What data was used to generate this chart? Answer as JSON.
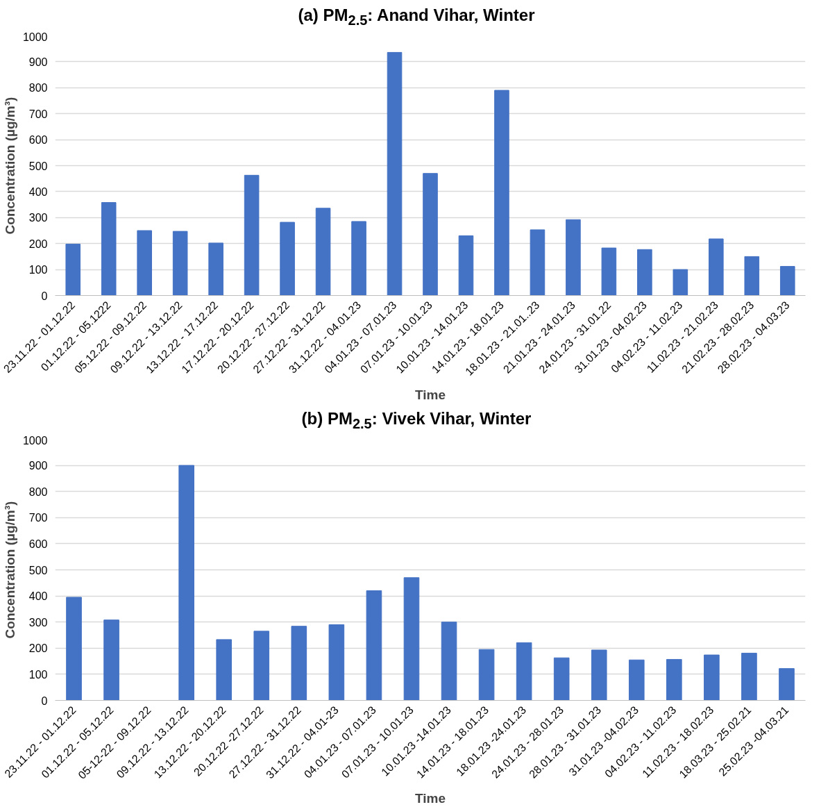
{
  "chart_data": [
    {
      "type": "bar",
      "title": "(a) PM$_{2.5}$: Anand Vihar, Winter",
      "xlabel": "Time",
      "ylabel": "Concentration (µg/m³)",
      "categories": [
        "23.11.22 - 01.12.22",
        "01.12.22 - 05.1222",
        "05.12.22 - 09.12.22",
        "09.12.22 - 13.12.22",
        "13.12.22 - 17.12.22",
        "17.12.22 - 20.12.22",
        "20.12.22 - 27.12.22",
        "27.12.22 - 31.12.22",
        "31.12.22 - 04.01.23",
        "04.01.23 - 07.01.23",
        "07.01.23 - 10.01.23",
        "10.01.23 - 14.01.23",
        "14.01.23 - 18.01.23",
        "18.01.23 - 21.01..23",
        "21.01.23 - 24.01.23",
        "24.01.23 - 31.01.22",
        "31.01.23 - 04.02.23",
        "04.02.23 - 11.02.23",
        "11.02.23 - 21.02.23",
        "21.02.23 - 28.02.23",
        "28.02.23 - 04.03.23"
      ],
      "values": [
        198,
        358,
        250,
        247,
        202,
        463,
        282,
        336,
        285,
        936,
        470,
        230,
        790,
        253,
        292,
        183,
        177,
        100,
        218,
        150,
        112
      ],
      "color": "#4472c4",
      "ylim": [
        0,
        1000
      ],
      "yticks": [
        0,
        100,
        200,
        300,
        400,
        500,
        600,
        700,
        800,
        900,
        1000
      ],
      "grid": "y"
    },
    {
      "type": "bar",
      "title": "(b) PM$_{2.5}$: Vivek Vihar, Winter",
      "xlabel": "Time",
      "ylabel": "Concentration (µg/m³)",
      "categories": [
        "23.11.22 - 01.12.22",
        "01.12.22 - 05.12.22",
        "05-12-22 - 09.12.22",
        "09.12.22 - 13.12.22",
        "13.12.22 - 20.12.22",
        "20.12.22 -27.12.22",
        "27.12.22 - 31.12.22",
        "31.12.22 - 04.01-23",
        "04.01.23 - 07.01.23",
        "07.01.23 - 10.01.23",
        "10.01.23 -14.01.23",
        "14.01.23 - 18.01.23",
        "18.01.23 -24.01.23",
        "24.01.23 - 28.01.23",
        "28.01.23 - 31.01.23",
        "31.01.23 -04.02.23",
        "04.02.23 - 11.02.23",
        "11.02.23 - 18.02.23",
        "18.03.23 - 25.02.21",
        "25.02.23 -04.03.21"
      ],
      "values": [
        395,
        308,
        null,
        900,
        233,
        265,
        284,
        290,
        420,
        470,
        300,
        195,
        221,
        163,
        193,
        155,
        157,
        174,
        181,
        122
      ],
      "color": "#4472c4",
      "ylim": [
        0,
        1000
      ],
      "yticks": [
        0,
        100,
        200,
        300,
        400,
        500,
        600,
        700,
        800,
        900,
        1000
      ],
      "grid": "y"
    }
  ]
}
